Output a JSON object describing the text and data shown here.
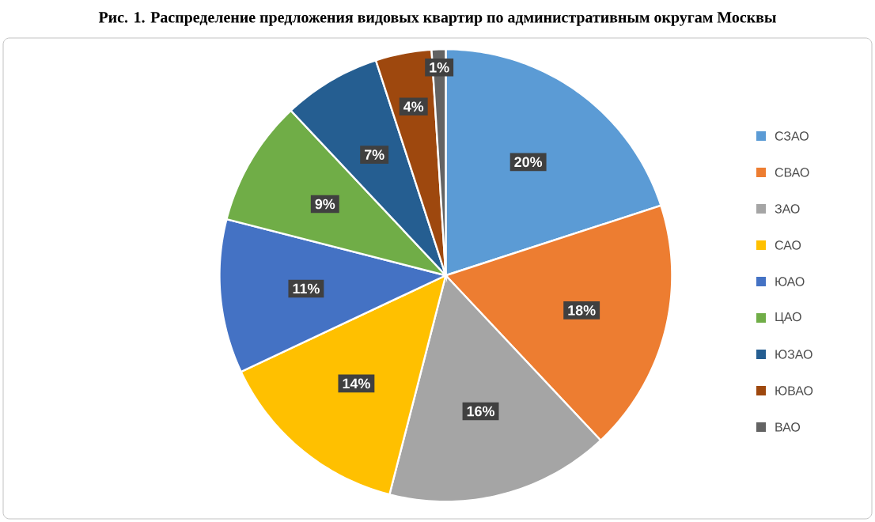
{
  "chart_data": {
    "type": "pie",
    "title": "Рис. 1. Распределение предложения видовых квартир по административным округам Москвы",
    "categories": [
      "СЗАО",
      "СВАО",
      "ЗАО",
      "САО",
      "ЮАО",
      "ЦАО",
      "ЮЗАО",
      "ЮВАО",
      "ВАО"
    ],
    "values": [
      20,
      18,
      16,
      14,
      11,
      9,
      7,
      4,
      1
    ],
    "colors": [
      "#5b9bd5",
      "#ed7d31",
      "#a5a5a5",
      "#ffc000",
      "#4472c4",
      "#70ad47",
      "#255e91",
      "#9e480e",
      "#636363"
    ],
    "value_labels": [
      "20%",
      "18%",
      "16%",
      "14%",
      "11%",
      "9%",
      "7%",
      "4%",
      "1%"
    ],
    "legend": "right"
  }
}
